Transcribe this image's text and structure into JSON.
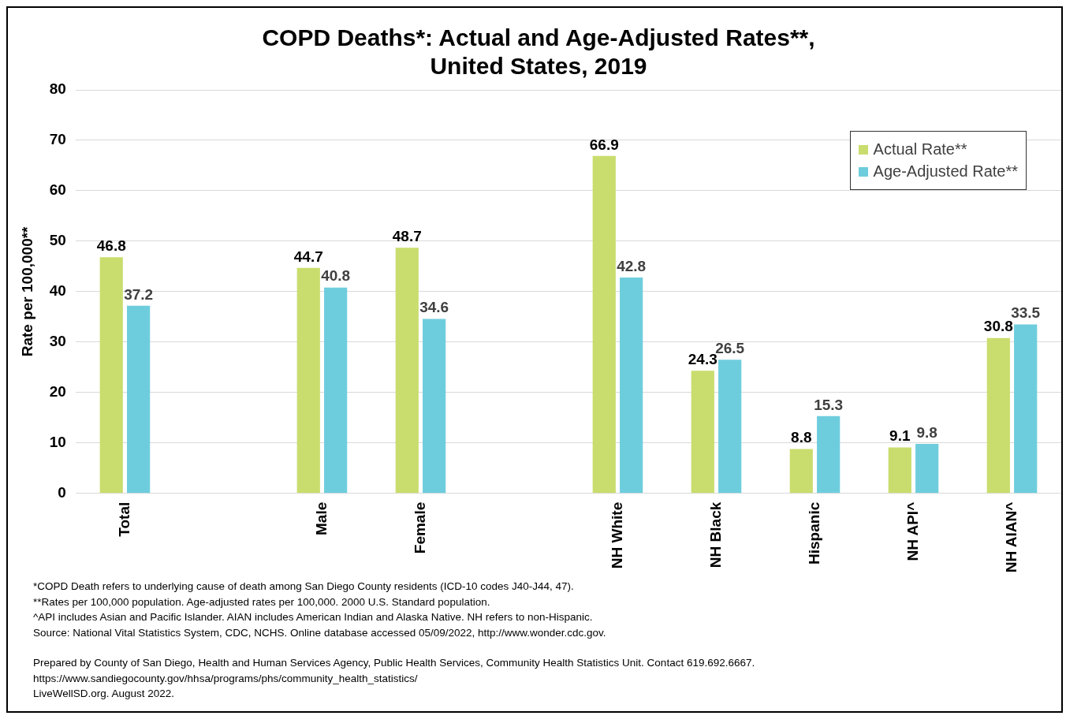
{
  "chart_data": {
    "type": "bar",
    "title": "COPD Deaths*: Actual and Age-Adjusted Rates**,\nUnited States, 2019",
    "ylabel": "Rate per 100,000**",
    "categories": [
      "Total",
      null,
      "Male",
      "Female",
      null,
      "NH White",
      "NH Black",
      "Hispanic",
      "NH API^",
      "NH AIAN^"
    ],
    "series": [
      {
        "name": "Actual Rate**",
        "color": "#c9dd6e",
        "values": [
          46.8,
          null,
          44.7,
          48.7,
          null,
          66.9,
          24.3,
          8.8,
          9.1,
          30.8
        ]
      },
      {
        "name": "Age-Adjusted Rate**",
        "color": "#6ecddd",
        "values": [
          37.2,
          null,
          40.8,
          34.6,
          null,
          42.8,
          26.5,
          15.3,
          9.8,
          33.5
        ]
      }
    ],
    "ylim": [
      0,
      80
    ],
    "yticks": [
      0,
      10,
      20,
      30,
      40,
      50,
      60,
      70,
      80
    ],
    "grid": "y",
    "legend": "top right",
    "data_labels": true,
    "annotations": [
      "*COPD Death refers to underlying cause of death among San Diego County residents (ICD-10 codes J40-J44, 47).",
      "**Rates per 100,000 population. Age-adjusted rates per 100,000. 2000 U.S. Standard population.",
      "^API includes Asian and Pacific Islander. AIAN includes American Indian and Alaska Native. NH refers to non-Hispanic.",
      "Source: National Vital Statistics System, CDC, NCHS. Online database accessed 05/09/2022, http://www.wonder.cdc.gov.",
      "Prepared by County of San Diego, Health and Human Services Agency, Public Health Services, Community Health Statistics Unit. Contact 619.692.6667.",
      "https://www.sandiegocounty.gov/hhsa/programs/phs/community_health_statistics/",
      "LiveWellSD.org. August 2022."
    ]
  }
}
